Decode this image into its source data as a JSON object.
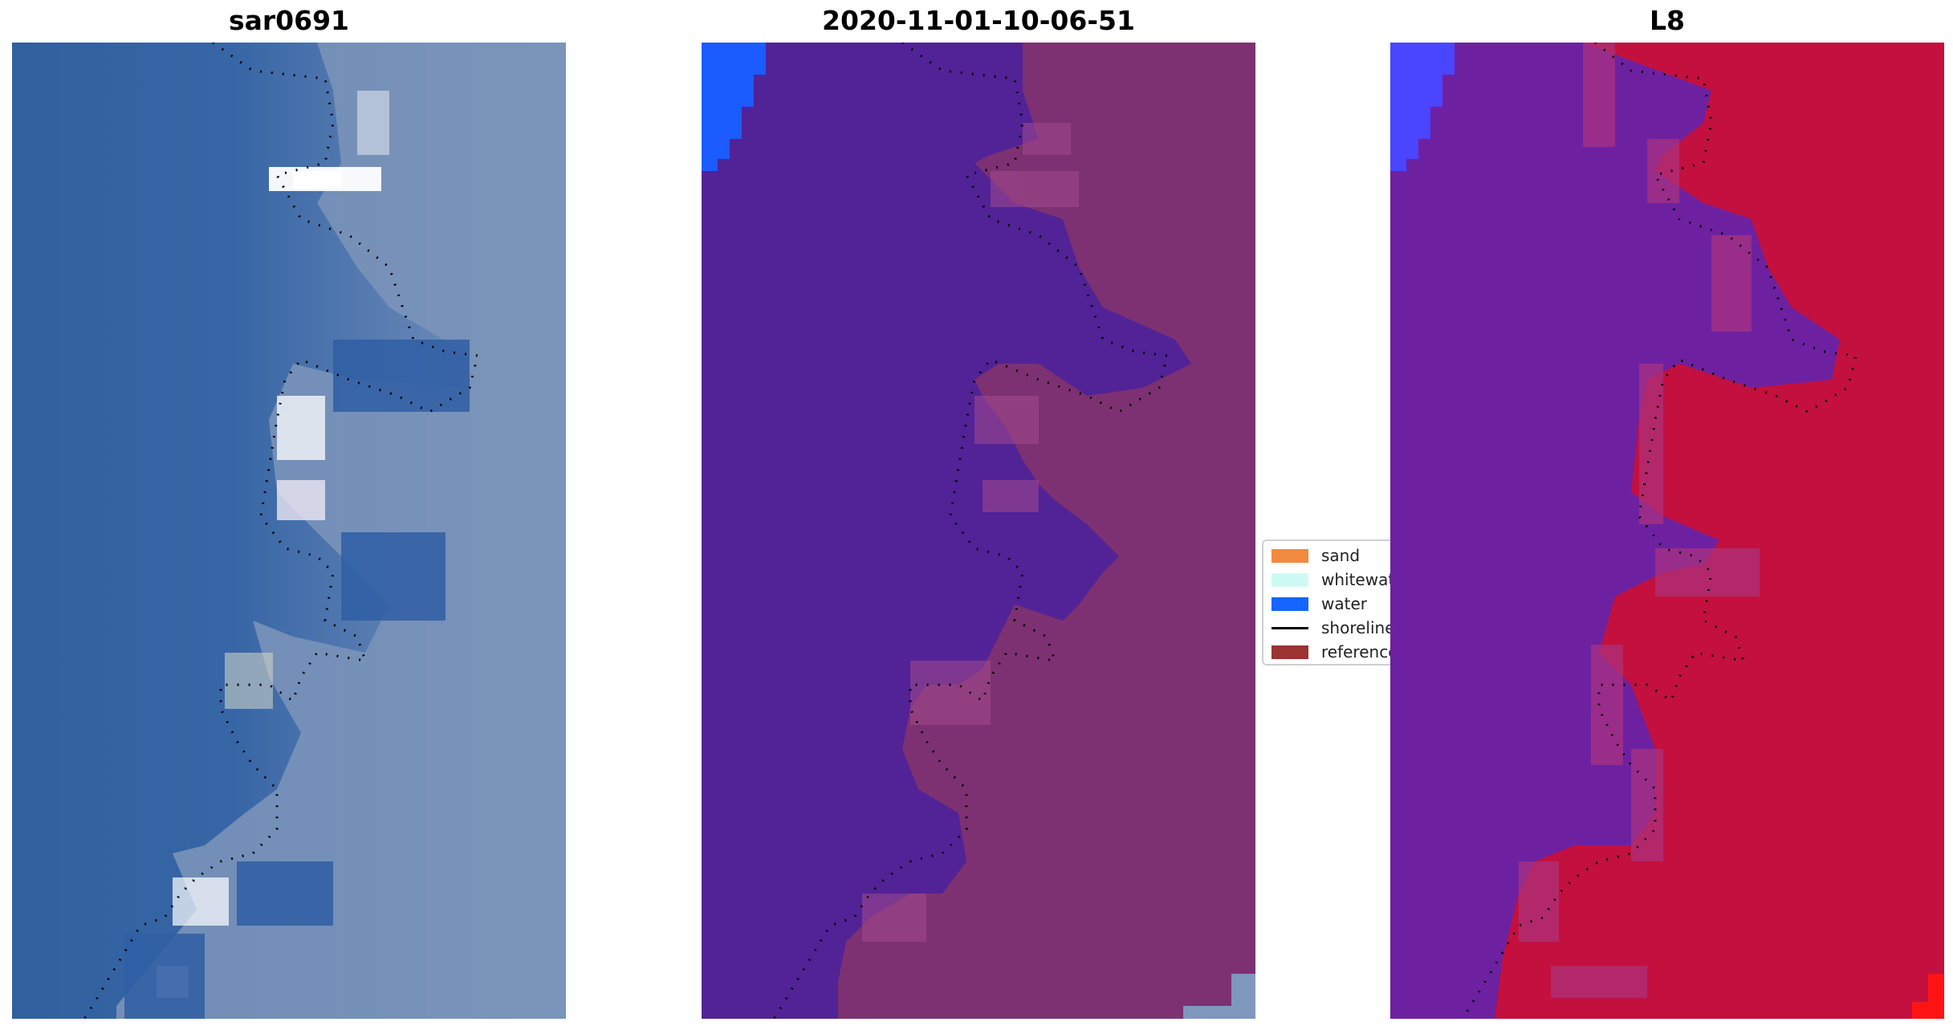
{
  "panels": [
    {
      "title": "sar0691"
    },
    {
      "title": "2020-11-01-10-06-51"
    },
    {
      "title": "L8"
    }
  ],
  "legend": {
    "items": [
      {
        "label": "sand",
        "kind": "swatch",
        "color": "#f28a3f"
      },
      {
        "label": "whitewat",
        "kind": "swatch",
        "color": "#cdfbf3"
      },
      {
        "label": "water",
        "kind": "swatch",
        "color": "#1565ff"
      },
      {
        "label": "shoreline",
        "kind": "line",
        "color": "#000000"
      },
      {
        "label": "reference",
        "kind": "swatch",
        "color": "#9b3333"
      }
    ]
  },
  "colors": {
    "sea_rgb": "#35629f",
    "land_rgb": "#7f97bd",
    "water_class": "#522297",
    "land_class": "#7d3172",
    "water_mndwi": "#6d21a1",
    "land_mndwi": "#c3103e",
    "water_blue": "#1a5cff",
    "water_blue_mndwi": "#4a45ff"
  }
}
